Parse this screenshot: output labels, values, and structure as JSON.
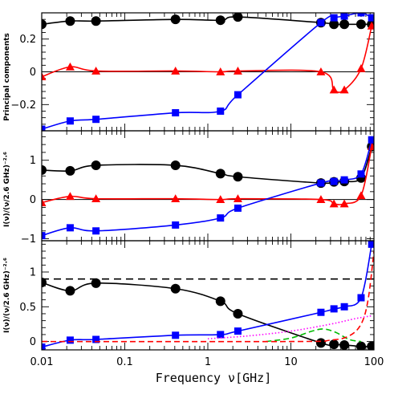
{
  "chart_data": [
    {
      "type": "line",
      "panel": "top",
      "ylabel": "Principal components",
      "xscale": "log",
      "xlim": [
        0.01,
        100
      ],
      "ylim": [
        -0.36,
        0.36
      ],
      "yticks": [
        -0.2,
        0,
        0.2
      ],
      "ytick_labels": [
        "−0.2",
        "0",
        "0.2"
      ],
      "zero_line": true,
      "series": [
        {
          "color": "#000000",
          "marker": "circle",
          "x": [
            0.01,
            0.022,
            0.045,
            0.408,
            1.42,
            2.3,
            23,
            33,
            44,
            70,
            94
          ],
          "y": [
            0.29,
            0.31,
            0.31,
            0.32,
            0.315,
            0.335,
            0.3,
            0.29,
            0.29,
            0.29,
            0.29
          ]
        },
        {
          "color": "#ff0000",
          "marker": "triangle",
          "x": [
            0.01,
            0.022,
            0.045,
            0.408,
            1.42,
            2.3,
            23,
            33,
            44,
            70,
            94
          ],
          "y": [
            -0.03,
            0.03,
            0.005,
            0.005,
            0.0,
            0.005,
            0.0,
            -0.11,
            -0.11,
            0.02,
            0.28
          ]
        },
        {
          "color": "#0000ff",
          "marker": "square",
          "x": [
            0.01,
            0.022,
            0.045,
            0.408,
            1.42,
            2.3,
            23,
            33,
            44,
            70,
            94
          ],
          "y": [
            -0.35,
            -0.3,
            -0.29,
            -0.25,
            -0.24,
            -0.14,
            0.3,
            0.33,
            0.34,
            0.36,
            0.33
          ]
        }
      ]
    },
    {
      "type": "line",
      "panel": "middle",
      "ylabel": "I(ν)/(ν/2.6 GHz)⁻²·⁶",
      "xscale": "log",
      "xlim": [
        0.01,
        100
      ],
      "ylim": [
        -1.05,
        1.75
      ],
      "yticks": [
        -1,
        0,
        1
      ],
      "ytick_labels": [
        "−1",
        "0",
        "1"
      ],
      "zero_line": true,
      "series": [
        {
          "color": "#000000",
          "marker": "circle",
          "x": [
            0.01,
            0.022,
            0.045,
            0.408,
            1.42,
            2.3,
            23,
            33,
            44,
            70,
            94
          ],
          "y": [
            0.75,
            0.73,
            0.87,
            0.87,
            0.66,
            0.58,
            0.42,
            0.45,
            0.46,
            0.55,
            1.35
          ]
        },
        {
          "color": "#ff0000",
          "marker": "triangle",
          "x": [
            0.01,
            0.022,
            0.045,
            0.408,
            1.42,
            2.3,
            23,
            33,
            44,
            70,
            94
          ],
          "y": [
            -0.08,
            0.08,
            0.02,
            0.02,
            0.0,
            0.02,
            0.0,
            -0.11,
            -0.11,
            0.1,
            1.35
          ]
        },
        {
          "color": "#0000ff",
          "marker": "square",
          "x": [
            0.01,
            0.022,
            0.045,
            0.408,
            1.42,
            2.3,
            23,
            33,
            44,
            70,
            94
          ],
          "y": [
            -0.92,
            -0.72,
            -0.8,
            -0.65,
            -0.47,
            -0.22,
            0.42,
            0.46,
            0.5,
            0.65,
            1.52
          ]
        }
      ]
    },
    {
      "type": "line",
      "panel": "bottom",
      "ylabel": "I(ν)/(ν/2.6 GHz)⁻²·⁶",
      "xlabel": "Frequency ν[GHz]",
      "xscale": "log",
      "xlim": [
        0.01,
        100
      ],
      "xtick_labels": [
        "0.01",
        "0.1",
        "1",
        "10",
        "100"
      ],
      "ylim": [
        -0.12,
        1.45
      ],
      "yticks": [
        0,
        0.5,
        1
      ],
      "ytick_labels": [
        "0",
        "0.5",
        "1"
      ],
      "hline": {
        "y": 0.9,
        "color": "#000000",
        "style": "dashed"
      },
      "series": [
        {
          "color": "#000000",
          "marker": "circle",
          "x": [
            0.01,
            0.022,
            0.045,
            0.408,
            1.42,
            2.3,
            23,
            33,
            44,
            70,
            94
          ],
          "y": [
            0.85,
            0.73,
            0.84,
            0.76,
            0.58,
            0.4,
            -0.02,
            -0.04,
            -0.05,
            -0.07,
            -0.07
          ]
        },
        {
          "color": "#0000ff",
          "marker": "square",
          "x": [
            0.01,
            0.022,
            0.045,
            0.408,
            1.42,
            2.3,
            23,
            33,
            44,
            70,
            94
          ],
          "y": [
            -0.08,
            0.02,
            0.03,
            0.09,
            0.1,
            0.15,
            0.42,
            0.47,
            0.5,
            0.63,
            1.4
          ]
        },
        {
          "color": "#ff00ff",
          "marker": "none",
          "style": "dotted",
          "x": [
            1,
            3,
            10,
            30,
            60,
            94
          ],
          "y": [
            0.04,
            0.08,
            0.15,
            0.25,
            0.33,
            0.37
          ]
        },
        {
          "color": "#00bb00",
          "marker": "none",
          "style": "dashed",
          "x": [
            5,
            10,
            18,
            25,
            35,
            50,
            70
          ],
          "y": [
            0.0,
            0.05,
            0.15,
            0.18,
            0.13,
            0.03,
            0.0
          ]
        },
        {
          "color": "#ff0000",
          "marker": "none",
          "style": "dashed",
          "x": [
            0.01,
            10,
            30,
            50,
            70,
            85,
            100
          ],
          "y": [
            0.0,
            0.0,
            0.02,
            0.08,
            0.25,
            0.6,
            1.3
          ]
        }
      ]
    }
  ]
}
